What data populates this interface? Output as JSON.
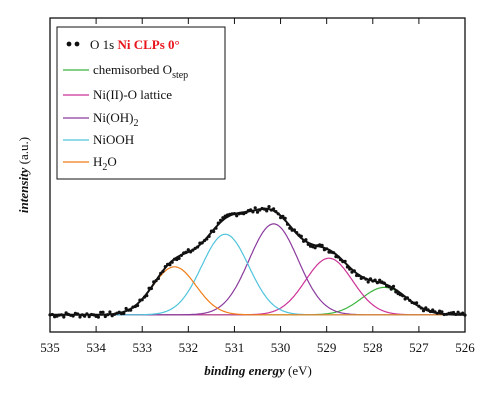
{
  "chart_data": {
    "type": "line",
    "xlabel_italic": "binding energy",
    "xlabel_unit": "(eV)",
    "ylabel": "intensity",
    "ylabel_unit": "(a.u.)",
    "xlim": [
      535,
      526
    ],
    "x_reversed": true,
    "x_ticks": [
      535,
      534,
      533,
      532,
      531,
      530,
      529,
      528,
      527,
      526
    ],
    "y_ticks_labeled": false,
    "grid": false,
    "legend_position": "top-left",
    "legend": {
      "data_label": "O 1s",
      "data_label_highlight": "Ni CLPs 0°",
      "highlight_color": "#e8141b"
    },
    "baseline": 0.02,
    "ylim": [
      -0.08,
      1.75
    ],
    "fit_series": [
      {
        "name": "chemisorbed O",
        "name_sub": "step",
        "color": "#3cb43c",
        "center": 527.75,
        "amplitude": 0.16,
        "fwhm": 1.15
      },
      {
        "name": "Ni(II)-O lattice",
        "name_sub": "",
        "color": "#cc3399",
        "center": 528.95,
        "amplitude": 0.33,
        "fwhm": 1.2
      },
      {
        "name": "Ni(OH)",
        "name_sub": "2",
        "color": "#8b3a9e",
        "center": 530.15,
        "amplitude": 0.53,
        "fwhm": 1.25
      },
      {
        "name": "NiOOH",
        "name_sub": "",
        "color": "#4fc4dc",
        "center": 531.2,
        "amplitude": 0.47,
        "fwhm": 1.2
      },
      {
        "name": "H",
        "name_sub": "2",
        "name_suffix": "O",
        "color": "#f07d18",
        "center": 532.3,
        "amplitude": 0.28,
        "fwhm": 1.1
      }
    ],
    "data_points_style": {
      "marker": "dot",
      "color": "#111111"
    },
    "envelope_color": "#111111"
  }
}
